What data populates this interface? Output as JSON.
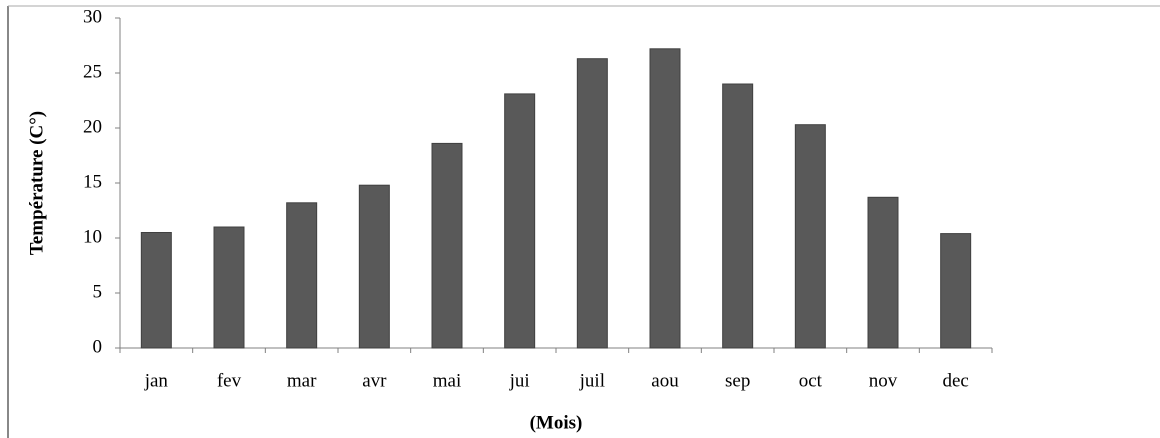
{
  "chart_data": {
    "type": "bar",
    "y_label": "Température (C°)",
    "x_label": "(Mois)",
    "categories": [
      "jan",
      "fev",
      "mar",
      "avr",
      "mai",
      "jui",
      "juil",
      "aou",
      "sep",
      "oct",
      "nov",
      "dec"
    ],
    "values": [
      10.5,
      11,
      13.2,
      14.8,
      18.6,
      23.1,
      26.3,
      27.2,
      24,
      20.3,
      13.7,
      10.4
    ],
    "color": "#595959",
    "ylim": [
      0,
      30
    ],
    "yticks": [
      0,
      5,
      10,
      15,
      20,
      25,
      30
    ],
    "grid": false
  }
}
